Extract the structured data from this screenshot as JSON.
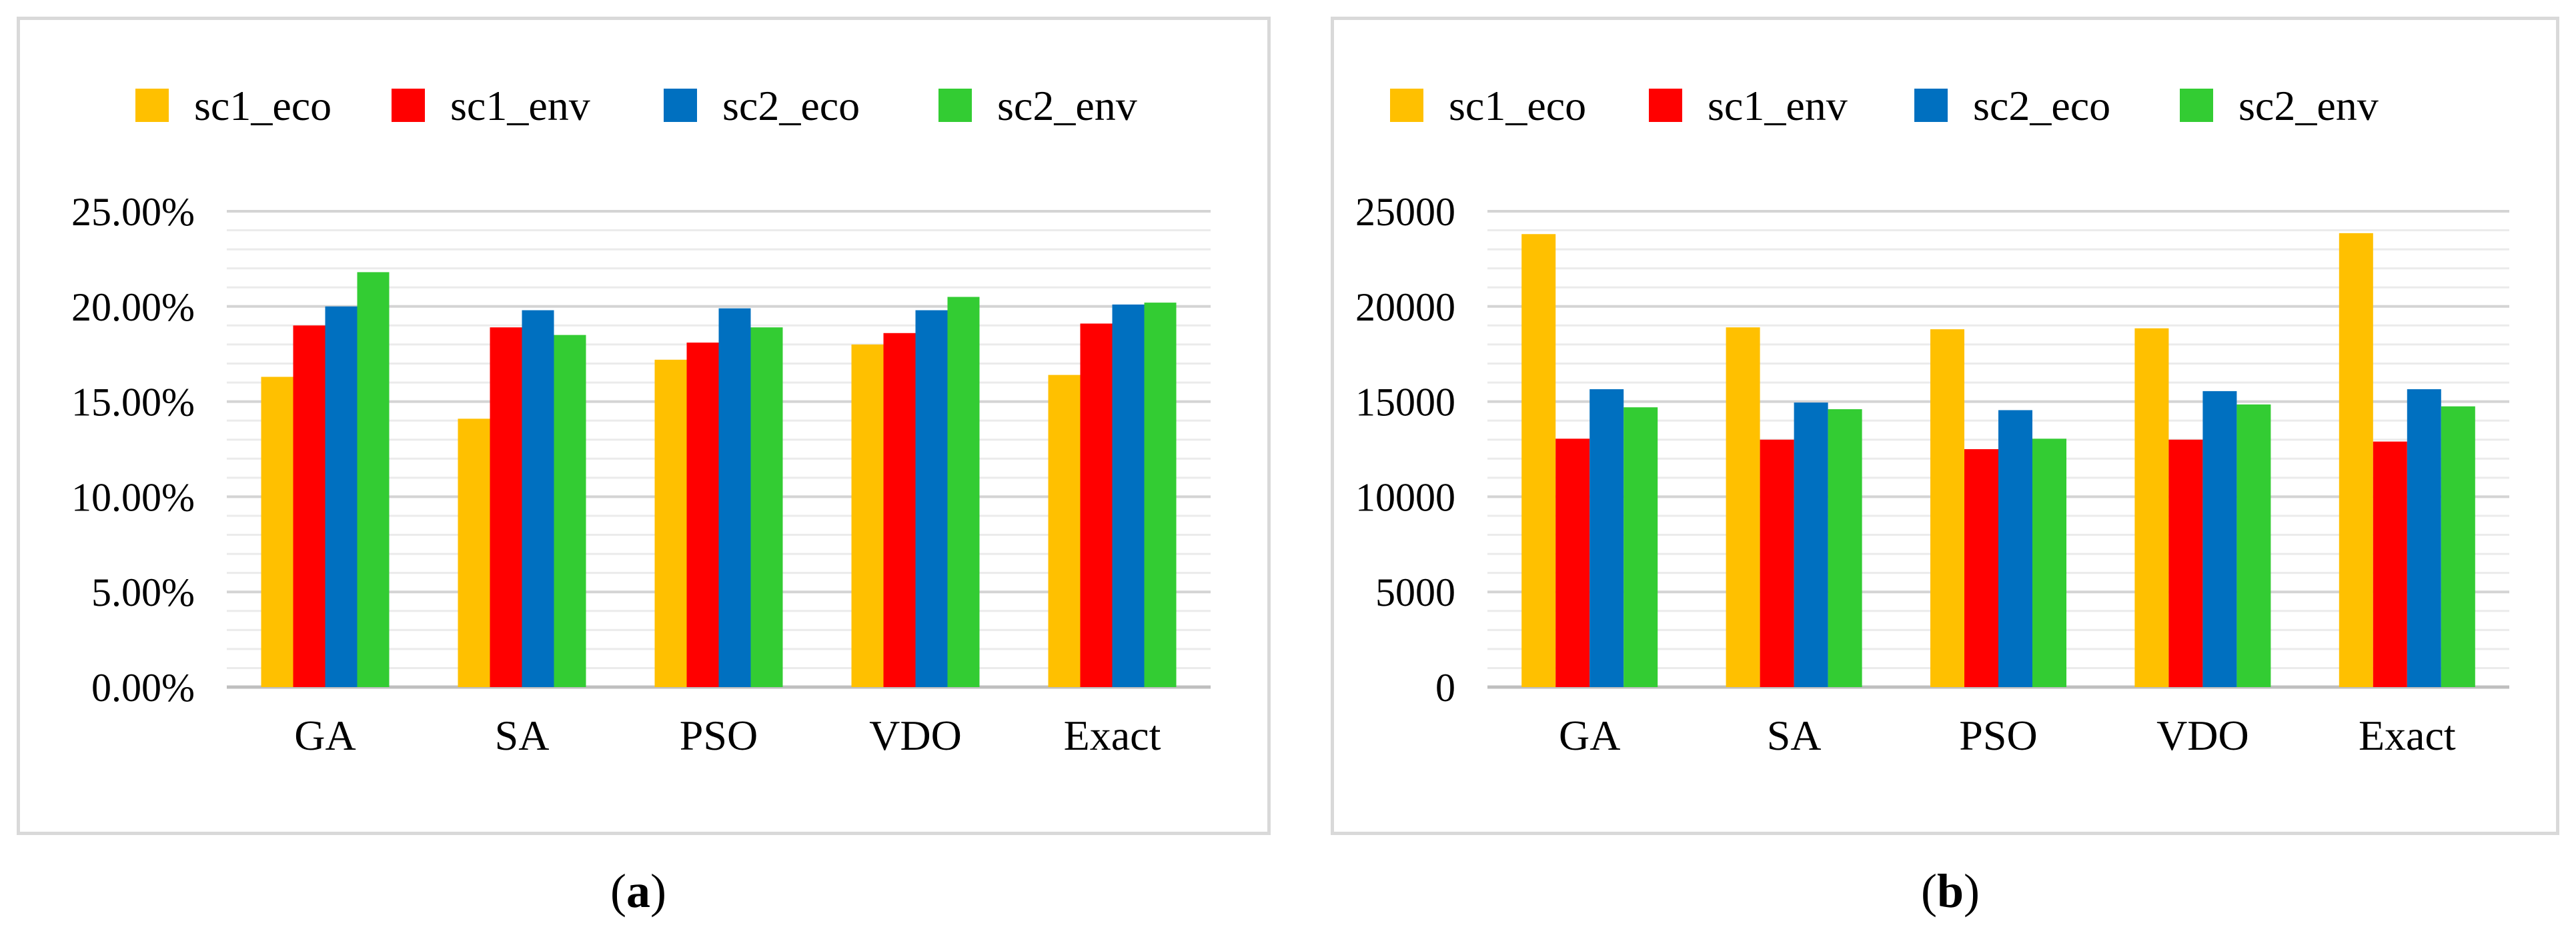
{
  "chart_data": [
    {
      "type": "bar",
      "panel": "a",
      "caption_letter": "a",
      "categories": [
        "GA",
        "SA",
        "PSO",
        "VDO",
        "Exact"
      ],
      "series": [
        {
          "name": "sc1_eco",
          "color": "#FFC000",
          "values": [
            16.3,
            14.1,
            17.2,
            18.0,
            16.4
          ]
        },
        {
          "name": "sc1_env",
          "color": "#FF0000",
          "values": [
            19.0,
            18.9,
            18.1,
            18.6,
            19.1
          ]
        },
        {
          "name": "sc2_eco",
          "color": "#0070C0",
          "values": [
            20.0,
            19.8,
            19.9,
            19.8,
            20.1
          ]
        },
        {
          "name": "sc2_env",
          "color": "#33CC33",
          "values": [
            21.8,
            18.5,
            18.9,
            20.5,
            20.2
          ]
        }
      ],
      "ylim": [
        0,
        25
      ],
      "major_ticks": [
        0,
        5,
        10,
        15,
        20,
        25
      ],
      "tick_labels": [
        "0.00%",
        "5.00%",
        "10.00%",
        "15.00%",
        "20.00%",
        "25.00%"
      ],
      "minor_step": 1,
      "legend_position": "top",
      "title": "",
      "xlabel": "",
      "ylabel": ""
    },
    {
      "type": "bar",
      "panel": "b",
      "caption_letter": "b",
      "categories": [
        "GA",
        "SA",
        "PSO",
        "VDO",
        "Exact"
      ],
      "series": [
        {
          "name": "sc1_eco",
          "color": "#FFC000",
          "values": [
            23800,
            18900,
            18800,
            18850,
            23850
          ]
        },
        {
          "name": "sc1_env",
          "color": "#FF0000",
          "values": [
            13050,
            13000,
            12500,
            13000,
            12900
          ]
        },
        {
          "name": "sc2_eco",
          "color": "#0070C0",
          "values": [
            15650,
            14950,
            14550,
            15550,
            15650
          ]
        },
        {
          "name": "sc2_env",
          "color": "#33CC33",
          "values": [
            14700,
            14600,
            13050,
            14850,
            14750
          ]
        }
      ],
      "ylim": [
        0,
        25000
      ],
      "major_ticks": [
        0,
        5000,
        10000,
        15000,
        20000,
        25000
      ],
      "tick_labels": [
        "0",
        "5000",
        "10000",
        "15000",
        "20000",
        "25000"
      ],
      "minor_step": 1000,
      "legend_position": "top",
      "title": "",
      "xlabel": "",
      "ylabel": ""
    }
  ]
}
